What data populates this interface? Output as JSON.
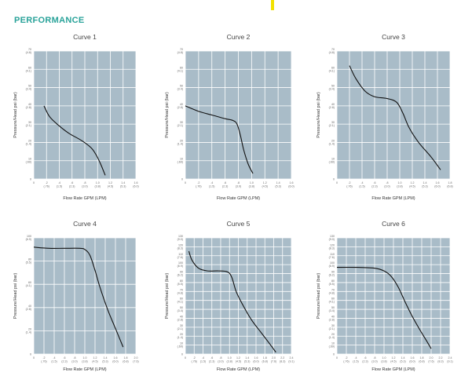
{
  "page_title": "PERFORMANCE",
  "accent_color": "#f2e200",
  "title_color": "#2aa39a",
  "plot_bg": "#a9bcc8",
  "chart_data": [
    {
      "type": "line",
      "title": "Curve 1",
      "xlabel": "Flow Rate GPM (LPM)",
      "ylabel": "Pressure/Head psi (bar)",
      "xlim": [
        0,
        1.6
      ],
      "ylim": [
        0,
        70
      ],
      "xticks": [
        {
          "v": 0,
          "l": "0",
          "s": ""
        },
        {
          "v": 0.2,
          "l": ".2",
          "s": "(.76)"
        },
        {
          "v": 0.4,
          "l": ".4",
          "s": "(1.5)"
        },
        {
          "v": 0.6,
          "l": ".6",
          "s": "(2.3)"
        },
        {
          "v": 0.8,
          "l": ".8",
          "s": "(3.0)"
        },
        {
          "v": 1.0,
          "l": "1.0",
          "s": "(3.8)"
        },
        {
          "v": 1.2,
          "l": "1.2",
          "s": "(4.5)"
        },
        {
          "v": 1.4,
          "l": "1.4",
          "s": "(5.3)"
        },
        {
          "v": 1.6,
          "l": "1.6",
          "s": "(6.0)"
        }
      ],
      "yticks": [
        {
          "v": 0,
          "l": "0",
          "s": ""
        },
        {
          "v": 10,
          "l": "10",
          "s": "(.69)"
        },
        {
          "v": 20,
          "l": "20",
          "s": "(1.4)"
        },
        {
          "v": 30,
          "l": "30",
          "s": "(2.1)"
        },
        {
          "v": 40,
          "l": "40",
          "s": "(2.8)"
        },
        {
          "v": 50,
          "l": "50",
          "s": "(3.4)"
        },
        {
          "v": 60,
          "l": "60",
          "s": "(4.1)"
        },
        {
          "v": 70,
          "l": "70",
          "s": "(4.8)"
        }
      ],
      "series": [
        {
          "x": [
            0.16,
            0.25,
            0.4,
            0.55,
            0.75,
            0.9,
            0.98,
            1.05,
            1.12
          ],
          "y": [
            40,
            34,
            29,
            25,
            21,
            17,
            13,
            8,
            2
          ]
        }
      ]
    },
    {
      "type": "line",
      "title": "Curve 2",
      "xlabel": "Flow Rate GPM (LPM)",
      "ylabel": "Pressure/Head psi (bar)",
      "xlim": [
        0,
        1.6
      ],
      "ylim": [
        0,
        70
      ],
      "xticks": [
        {
          "v": 0,
          "l": "0",
          "s": ""
        },
        {
          "v": 0.2,
          "l": ".2",
          "s": "(.76)"
        },
        {
          "v": 0.4,
          "l": ".4",
          "s": "(1.5)"
        },
        {
          "v": 0.6,
          "l": ".6",
          "s": "(2.3)"
        },
        {
          "v": 0.8,
          "l": ".8",
          "s": "(3.0)"
        },
        {
          "v": 1.0,
          "l": "1.0",
          "s": "(3.8)"
        },
        {
          "v": 1.2,
          "l": "1.2",
          "s": "(4.5)"
        },
        {
          "v": 1.4,
          "l": "1.4",
          "s": "(5.3)"
        },
        {
          "v": 1.6,
          "l": "1.6",
          "s": "(6.0)"
        }
      ],
      "yticks": [
        {
          "v": 0,
          "l": "0",
          "s": ""
        },
        {
          "v": 10,
          "l": "10",
          "s": "(.69)"
        },
        {
          "v": 20,
          "l": "20",
          "s": "(1.4)"
        },
        {
          "v": 30,
          "l": "30",
          "s": "(2.1)"
        },
        {
          "v": 40,
          "l": "40",
          "s": "(2.8)"
        },
        {
          "v": 50,
          "l": "50",
          "s": "(3.4)"
        },
        {
          "v": 60,
          "l": "60",
          "s": "(4.1)"
        },
        {
          "v": 70,
          "l": "70",
          "s": "(4.8)"
        }
      ],
      "series": [
        {
          "x": [
            0,
            0.2,
            0.4,
            0.6,
            0.72,
            0.78,
            0.83,
            0.88,
            0.95,
            1.02
          ],
          "y": [
            40,
            37,
            35,
            33,
            32,
            30,
            24,
            16,
            8,
            3
          ]
        }
      ]
    },
    {
      "type": "line",
      "title": "Curve 3",
      "xlabel": "Flow Rate GPM (LPM)",
      "ylabel": "Pressure/Head psi (bar)",
      "xlim": [
        0,
        1.8
      ],
      "ylim": [
        0,
        70
      ],
      "xticks": [
        {
          "v": 0,
          "l": "0",
          "s": ""
        },
        {
          "v": 0.2,
          "l": ".2",
          "s": "(.76)"
        },
        {
          "v": 0.4,
          "l": ".4",
          "s": "(1.5)"
        },
        {
          "v": 0.6,
          "l": ".6",
          "s": "(2.3)"
        },
        {
          "v": 0.8,
          "l": ".8",
          "s": "(3.0)"
        },
        {
          "v": 1.0,
          "l": "1.0",
          "s": "(3.8)"
        },
        {
          "v": 1.2,
          "l": "1.2",
          "s": "(4.5)"
        },
        {
          "v": 1.4,
          "l": "1.4",
          "s": "(5.3)"
        },
        {
          "v": 1.6,
          "l": "1.6",
          "s": "(6.0)"
        },
        {
          "v": 1.8,
          "l": "1.8",
          "s": "(6.8)"
        }
      ],
      "yticks": [
        {
          "v": 0,
          "l": "0",
          "s": ""
        },
        {
          "v": 10,
          "l": "10",
          "s": "(.69)"
        },
        {
          "v": 20,
          "l": "20",
          "s": "(1.4)"
        },
        {
          "v": 30,
          "l": "30",
          "s": "(2.1)"
        },
        {
          "v": 40,
          "l": "40",
          "s": "(2.8)"
        },
        {
          "v": 50,
          "l": "50",
          "s": "(3.4)"
        },
        {
          "v": 60,
          "l": "60",
          "s": "(4.1)"
        },
        {
          "v": 70,
          "l": "70",
          "s": "(4.8)"
        }
      ],
      "series": [
        {
          "x": [
            0.2,
            0.3,
            0.45,
            0.6,
            0.8,
            0.95,
            1.05,
            1.15,
            1.3,
            1.5,
            1.65
          ],
          "y": [
            62,
            55,
            48,
            45,
            44,
            42,
            36,
            28,
            20,
            12,
            5
          ]
        }
      ]
    },
    {
      "type": "line",
      "title": "Curve 4",
      "xlabel": "Flow Rate GPM (LPM)",
      "ylabel": "Pressure/Head psi (bar)",
      "xlim": [
        0,
        2.0
      ],
      "ylim": [
        0,
        100
      ],
      "xticks": [
        {
          "v": 0,
          "l": "0",
          "s": ""
        },
        {
          "v": 0.2,
          "l": ".2",
          "s": "(.76)"
        },
        {
          "v": 0.4,
          "l": ".4",
          "s": "(1.5)"
        },
        {
          "v": 0.6,
          "l": ".6",
          "s": "(2.3)"
        },
        {
          "v": 0.8,
          "l": ".8",
          "s": "(3.0)"
        },
        {
          "v": 1.0,
          "l": "1.0",
          "s": "(3.8)"
        },
        {
          "v": 1.2,
          "l": "1.2",
          "s": "(4.5)"
        },
        {
          "v": 1.4,
          "l": "1.4",
          "s": "(5.3)"
        },
        {
          "v": 1.6,
          "l": "1.6",
          "s": "(6.0)"
        },
        {
          "v": 1.8,
          "l": "1.8",
          "s": "(6.8)"
        },
        {
          "v": 2.0,
          "l": "2.0",
          "s": "(7.6)"
        }
      ],
      "yticks": [
        {
          "v": 0,
          "l": "0",
          "s": ""
        },
        {
          "v": 20,
          "l": "20",
          "s": "(1.4)"
        },
        {
          "v": 40,
          "l": "40",
          "s": "(2.8)"
        },
        {
          "v": 60,
          "l": "60",
          "s": "(4.1)"
        },
        {
          "v": 80,
          "l": "80",
          "s": "(5.5)"
        },
        {
          "v": 100,
          "l": "100",
          "s": "(6.9)"
        }
      ],
      "series": [
        {
          "x": [
            0,
            0.3,
            0.6,
            0.9,
            1.0,
            1.1,
            1.2,
            1.3,
            1.45,
            1.6,
            1.75
          ],
          "y": [
            92,
            91,
            91,
            91,
            90,
            85,
            72,
            57,
            38,
            22,
            6
          ]
        }
      ]
    },
    {
      "type": "line",
      "title": "Curve 5",
      "xlabel": "Flow Rate GPM (LPM)",
      "ylabel": "Pressure/Head psi (bar)",
      "xlim": [
        0,
        2.4
      ],
      "ylim": [
        0,
        130
      ],
      "xticks": [
        {
          "v": 0,
          "l": "0",
          "s": ""
        },
        {
          "v": 0.2,
          "l": ".2",
          "s": "(.76)"
        },
        {
          "v": 0.4,
          "l": ".4",
          "s": "(1.5)"
        },
        {
          "v": 0.6,
          "l": ".6",
          "s": "(2.3)"
        },
        {
          "v": 0.8,
          "l": ".8",
          "s": "(3.0)"
        },
        {
          "v": 1.0,
          "l": "1.0",
          "s": "(3.8)"
        },
        {
          "v": 1.2,
          "l": "1.2",
          "s": "(4.5)"
        },
        {
          "v": 1.4,
          "l": "1.4",
          "s": "(5.3)"
        },
        {
          "v": 1.6,
          "l": "1.6",
          "s": "(6.0)"
        },
        {
          "v": 1.8,
          "l": "1.8",
          "s": "(6.8)"
        },
        {
          "v": 2.0,
          "l": "2.0",
          "s": "(7.6)"
        },
        {
          "v": 2.2,
          "l": "2.2",
          "s": "(8.3)"
        },
        {
          "v": 2.4,
          "l": "2.4",
          "s": "(9.1)"
        }
      ],
      "yticks": [
        {
          "v": 0,
          "l": "0",
          "s": ""
        },
        {
          "v": 10,
          "l": "10",
          "s": "(.69)"
        },
        {
          "v": 20,
          "l": "20",
          "s": "(1.4)"
        },
        {
          "v": 30,
          "l": "30",
          "s": "(2.1)"
        },
        {
          "v": 40,
          "l": "40",
          "s": "(2.8)"
        },
        {
          "v": 50,
          "l": "50",
          "s": "(3.4)"
        },
        {
          "v": 60,
          "l": "60",
          "s": "(4.1)"
        },
        {
          "v": 70,
          "l": "70",
          "s": "(4.8)"
        },
        {
          "v": 80,
          "l": "80",
          "s": "(5.5)"
        },
        {
          "v": 90,
          "l": "90",
          "s": "(6.2)"
        },
        {
          "v": 100,
          "l": "100",
          "s": "(6.9)"
        },
        {
          "v": 110,
          "l": "110",
          "s": "(7.6)"
        },
        {
          "v": 120,
          "l": "120",
          "s": "(8.3)"
        },
        {
          "v": 130,
          "l": "130",
          "s": "(9.0)"
        }
      ],
      "series": [
        {
          "x": [
            0.08,
            0.15,
            0.3,
            0.5,
            0.75,
            0.95,
            1.05,
            1.15,
            1.3,
            1.5,
            1.7,
            1.9,
            2.05
          ],
          "y": [
            115,
            105,
            96,
            93,
            93,
            92,
            86,
            70,
            55,
            38,
            25,
            12,
            2
          ]
        }
      ]
    },
    {
      "type": "line",
      "title": "Curve 6",
      "xlabel": "Flow Rate GPM (LPM)",
      "ylabel": "Pressure/Head psi (bar)",
      "xlim": [
        0,
        2.4
      ],
      "ylim": [
        0,
        130
      ],
      "xticks": [
        {
          "v": 0,
          "l": "0",
          "s": ""
        },
        {
          "v": 0.2,
          "l": ".2",
          "s": "(.76)"
        },
        {
          "v": 0.4,
          "l": ".4",
          "s": "(1.5)"
        },
        {
          "v": 0.6,
          "l": ".6",
          "s": "(2.3)"
        },
        {
          "v": 0.8,
          "l": ".8",
          "s": "(3.0)"
        },
        {
          "v": 1.0,
          "l": "1.0",
          "s": "(3.8)"
        },
        {
          "v": 1.2,
          "l": "1.2",
          "s": "(4.5)"
        },
        {
          "v": 1.4,
          "l": "1.4",
          "s": "(5.3)"
        },
        {
          "v": 1.6,
          "l": "1.6",
          "s": "(6.0)"
        },
        {
          "v": 1.8,
          "l": "1.8",
          "s": "(6.8)"
        },
        {
          "v": 2.0,
          "l": "2.0",
          "s": "(7.6)"
        },
        {
          "v": 2.2,
          "l": "2.2",
          "s": "(8.3)"
        },
        {
          "v": 2.4,
          "l": "2.4",
          "s": "(9.1)"
        }
      ],
      "yticks": [
        {
          "v": 0,
          "l": "0",
          "s": ""
        },
        {
          "v": 10,
          "l": "10",
          "s": "(.69)"
        },
        {
          "v": 20,
          "l": "20",
          "s": "(1.4)"
        },
        {
          "v": 30,
          "l": "30",
          "s": "(2.1)"
        },
        {
          "v": 40,
          "l": "40",
          "s": "(2.8)"
        },
        {
          "v": 50,
          "l": "50",
          "s": "(3.4)"
        },
        {
          "v": 60,
          "l": "60",
          "s": "(4.1)"
        },
        {
          "v": 70,
          "l": "70",
          "s": "(4.8)"
        },
        {
          "v": 80,
          "l": "80",
          "s": "(5.5)"
        },
        {
          "v": 90,
          "l": "90",
          "s": "(6.2)"
        },
        {
          "v": 100,
          "l": "100",
          "s": "(6.9)"
        },
        {
          "v": 110,
          "l": "110",
          "s": "(7.6)"
        },
        {
          "v": 120,
          "l": "120",
          "s": "(8.3)"
        },
        {
          "v": 130,
          "l": "130",
          "s": "(9.0)"
        }
      ],
      "series": [
        {
          "x": [
            0,
            0.4,
            0.8,
            1.0,
            1.15,
            1.3,
            1.45,
            1.6,
            1.75,
            1.9,
            2.0
          ],
          "y": [
            97,
            97,
            96,
            93,
            87,
            75,
            58,
            42,
            28,
            15,
            6
          ]
        }
      ]
    }
  ]
}
